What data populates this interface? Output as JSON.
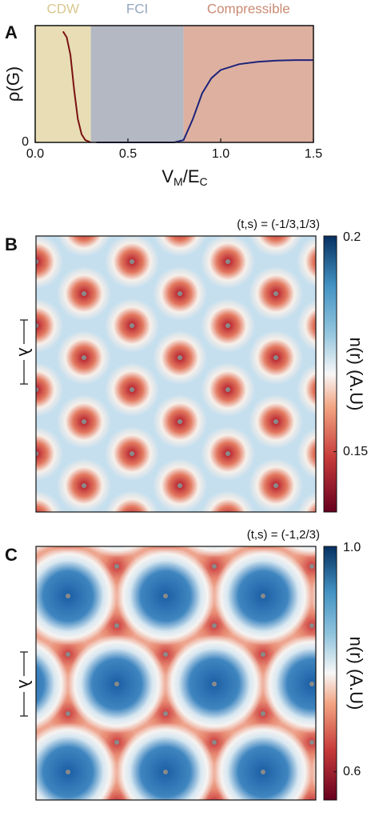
{
  "chart_data": [
    {
      "type": "line",
      "panel": "A",
      "regions": [
        {
          "name": "CDW",
          "start": 0,
          "end": 0.3,
          "color": "#e8ddb5",
          "label_color": "#d8c88f"
        },
        {
          "name": "FCI",
          "start": 0.3,
          "end": 0.8,
          "color": "#b3b8c2",
          "label_color": "#93a6bd"
        },
        {
          "name": "Compressible",
          "start": 0.8,
          "end": 1.5,
          "color": "#ddb0a0",
          "label_color": "#c98a72"
        }
      ],
      "series": [
        {
          "color": "#7a1010",
          "x": [
            0.15,
            0.17,
            0.19,
            0.21,
            0.23,
            0.25,
            0.27,
            0.3
          ],
          "values": [
            0.95,
            0.9,
            0.75,
            0.45,
            0.2,
            0.07,
            0.02,
            0
          ]
        },
        {
          "color": "#1d237a",
          "x": [
            0.33,
            0.5,
            0.75,
            0.8,
            0.85,
            0.9,
            0.95,
            1.0,
            1.1,
            1.2,
            1.3,
            1.4,
            1.5
          ],
          "values": [
            0,
            0,
            0,
            0.02,
            0.2,
            0.42,
            0.55,
            0.62,
            0.67,
            0.69,
            0.7,
            0.705,
            0.705
          ]
        }
      ],
      "xlim": [
        0,
        1.5
      ],
      "xticks": [
        {
          "value": 0,
          "label": "0.0"
        },
        0.5,
        {
          "value": 1,
          "label": "1.0"
        },
        1.5
      ],
      "ylim": [
        0,
        1
      ],
      "yticks": [
        0
      ],
      "y_label": "ρ(G)",
      "x_label": [
        "V",
        "M",
        "/E",
        "C"
      ]
    },
    {
      "type": "heatmap",
      "panel": "B",
      "annotation": "(t,s) = (-1/3,1/3)",
      "scale_label": "λ",
      "colorbar_label": "n(r) (A.U)",
      "clim": [
        0.136,
        0.2
      ],
      "cticks": [
        0.2,
        0.15
      ]
    },
    {
      "type": "heatmap",
      "panel": "C",
      "annotation": "(t,s) = (-1,2/3)",
      "scale_label": "λ",
      "colorbar_label": "n(r) (A.U)",
      "clim": [
        0.55,
        1.0
      ],
      "cticks": [
        {
          "value": 1.0,
          "label": "1.0"
        },
        0.6
      ]
    }
  ]
}
